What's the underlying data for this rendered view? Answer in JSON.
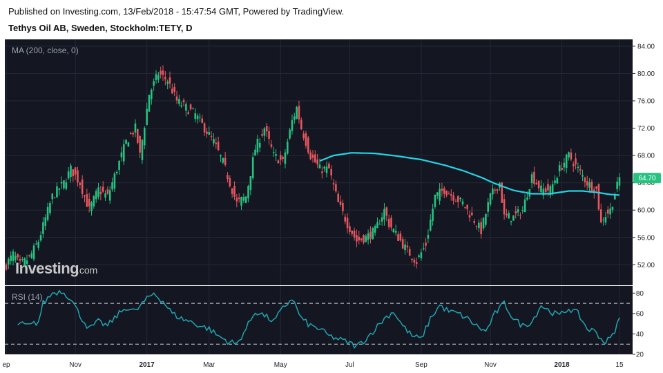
{
  "header": {
    "published": "Published on Investing.com, 13/Feb/2018 - 15:47:54 GMT, Powered by TradingView.",
    "title": "Tethys Oil AB, Sweden, Stockholm:TETY, D"
  },
  "watermark": {
    "brand": "Investing",
    "suffix": ".com"
  },
  "colors": {
    "panel_bg": "#141721",
    "up": "#26c281",
    "down": "#e8565e",
    "ma": "#22d4e6",
    "rsi": "#20a5b1",
    "last_price_tag": "#26c281",
    "grid": "#232838"
  },
  "chart_data": [
    {
      "type": "candlestick",
      "indicator_label": "MA (200, close, 0)",
      "ylim": [
        49,
        85
      ],
      "y_ticks": [
        "84.00",
        "80.00",
        "76.00",
        "72.00",
        "68.00",
        "64.00",
        "60.00",
        "56.00",
        "52.00"
      ],
      "y_tick_values": [
        84,
        80,
        76,
        72,
        68,
        64,
        60,
        56,
        52
      ],
      "last_price": "64.70",
      "x_labels": [
        "ep",
        "Nov",
        "2017",
        "Mar",
        "May",
        "Jul",
        "Sep",
        "Nov",
        "2018",
        "15"
      ],
      "x_label_bold": [
        false,
        false,
        true,
        false,
        false,
        false,
        false,
        false,
        true,
        false
      ],
      "x_label_index": [
        0,
        30,
        61,
        88,
        119,
        149,
        180,
        210,
        241,
        266
      ],
      "total_bars": 270,
      "close_anchors": [
        [
          0,
          52
        ],
        [
          3,
          53.5
        ],
        [
          6,
          52
        ],
        [
          10,
          53
        ],
        [
          14,
          55.5
        ],
        [
          20,
          62
        ],
        [
          25,
          64
        ],
        [
          28,
          66
        ],
        [
          32,
          64
        ],
        [
          36,
          60
        ],
        [
          40,
          63
        ],
        [
          44,
          62
        ],
        [
          48,
          66
        ],
        [
          52,
          70
        ],
        [
          56,
          72
        ],
        [
          58,
          68
        ],
        [
          62,
          77
        ],
        [
          66,
          80
        ],
        [
          70,
          79
        ],
        [
          74,
          76
        ],
        [
          78,
          75
        ],
        [
          82,
          74
        ],
        [
          86,
          72
        ],
        [
          90,
          70
        ],
        [
          94,
          67
        ],
        [
          98,
          63
        ],
        [
          100,
          61
        ],
        [
          104,
          62
        ],
        [
          108,
          69
        ],
        [
          112,
          72
        ],
        [
          116,
          68
        ],
        [
          120,
          67
        ],
        [
          122,
          70
        ],
        [
          124,
          73
        ],
        [
          126,
          75
        ],
        [
          128,
          72
        ],
        [
          132,
          68
        ],
        [
          136,
          66
        ],
        [
          140,
          66
        ],
        [
          144,
          61
        ],
        [
          148,
          58
        ],
        [
          152,
          55.5
        ],
        [
          156,
          56
        ],
        [
          160,
          57
        ],
        [
          164,
          60
        ],
        [
          166,
          58
        ],
        [
          170,
          56
        ],
        [
          174,
          54
        ],
        [
          178,
          52.5
        ],
        [
          182,
          55
        ],
        [
          186,
          62
        ],
        [
          190,
          63
        ],
        [
          194,
          62
        ],
        [
          198,
          61
        ],
        [
          202,
          59
        ],
        [
          206,
          57
        ],
        [
          210,
          62
        ],
        [
          214,
          64
        ],
        [
          216,
          59
        ],
        [
          220,
          59
        ],
        [
          224,
          60
        ],
        [
          228,
          65
        ],
        [
          232,
          63
        ],
        [
          236,
          63
        ],
        [
          240,
          66
        ],
        [
          244,
          68
        ],
        [
          248,
          66
        ],
        [
          252,
          64
        ],
        [
          256,
          63
        ],
        [
          258,
          58
        ],
        [
          259,
          59
        ],
        [
          262,
          60
        ],
        [
          266,
          64.7
        ]
      ],
      "ma_start": 136,
      "ma_anchors": [
        [
          136,
          67.2
        ],
        [
          142,
          68
        ],
        [
          150,
          68.4
        ],
        [
          160,
          68.3
        ],
        [
          170,
          67.9
        ],
        [
          180,
          67.4
        ],
        [
          190,
          66.6
        ],
        [
          198,
          65.8
        ],
        [
          206,
          64.8
        ],
        [
          212,
          63.9
        ],
        [
          220,
          62.9
        ],
        [
          228,
          62.4
        ],
        [
          236,
          62.4
        ],
        [
          244,
          62.8
        ],
        [
          250,
          62.8
        ],
        [
          256,
          62.6
        ],
        [
          262,
          62.3
        ],
        [
          266,
          62.2
        ]
      ]
    },
    {
      "type": "line",
      "indicator_label": "RSI (14)",
      "ylim": [
        20,
        87
      ],
      "y_ticks": [
        "80",
        "60",
        "40",
        "20"
      ],
      "y_tick_values": [
        80,
        60,
        40,
        20
      ],
      "overbought": 70,
      "oversold": 30,
      "rsi_anchors": [
        [
          5,
          50
        ],
        [
          10,
          48
        ],
        [
          14,
          52
        ],
        [
          16,
          70
        ],
        [
          20,
          80
        ],
        [
          24,
          82
        ],
        [
          28,
          75
        ],
        [
          32,
          58
        ],
        [
          36,
          45
        ],
        [
          40,
          52
        ],
        [
          44,
          48
        ],
        [
          48,
          58
        ],
        [
          52,
          66
        ],
        [
          56,
          62
        ],
        [
          60,
          72
        ],
        [
          64,
          80
        ],
        [
          68,
          72
        ],
        [
          72,
          60
        ],
        [
          76,
          55
        ],
        [
          80,
          52
        ],
        [
          84,
          48
        ],
        [
          88,
          45
        ],
        [
          92,
          38
        ],
        [
          96,
          33
        ],
        [
          100,
          30
        ],
        [
          104,
          45
        ],
        [
          108,
          62
        ],
        [
          112,
          58
        ],
        [
          116,
          52
        ],
        [
          120,
          65
        ],
        [
          124,
          75
        ],
        [
          128,
          55
        ],
        [
          132,
          48
        ],
        [
          136,
          45
        ],
        [
          140,
          38
        ],
        [
          144,
          35
        ],
        [
          148,
          32
        ],
        [
          152,
          28
        ],
        [
          156,
          35
        ],
        [
          160,
          45
        ],
        [
          164,
          55
        ],
        [
          168,
          62
        ],
        [
          172,
          48
        ],
        [
          176,
          38
        ],
        [
          180,
          35
        ],
        [
          184,
          55
        ],
        [
          188,
          68
        ],
        [
          192,
          62
        ],
        [
          196,
          60
        ],
        [
          200,
          55
        ],
        [
          204,
          48
        ],
        [
          208,
          42
        ],
        [
          212,
          60
        ],
        [
          216,
          70
        ],
        [
          220,
          55
        ],
        [
          224,
          48
        ],
        [
          228,
          52
        ],
        [
          232,
          68
        ],
        [
          236,
          62
        ],
        [
          240,
          58
        ],
        [
          244,
          65
        ],
        [
          248,
          60
        ],
        [
          252,
          45
        ],
        [
          256,
          42
        ],
        [
          258,
          35
        ],
        [
          260,
          32
        ],
        [
          263,
          38
        ],
        [
          266,
          55
        ]
      ]
    }
  ]
}
